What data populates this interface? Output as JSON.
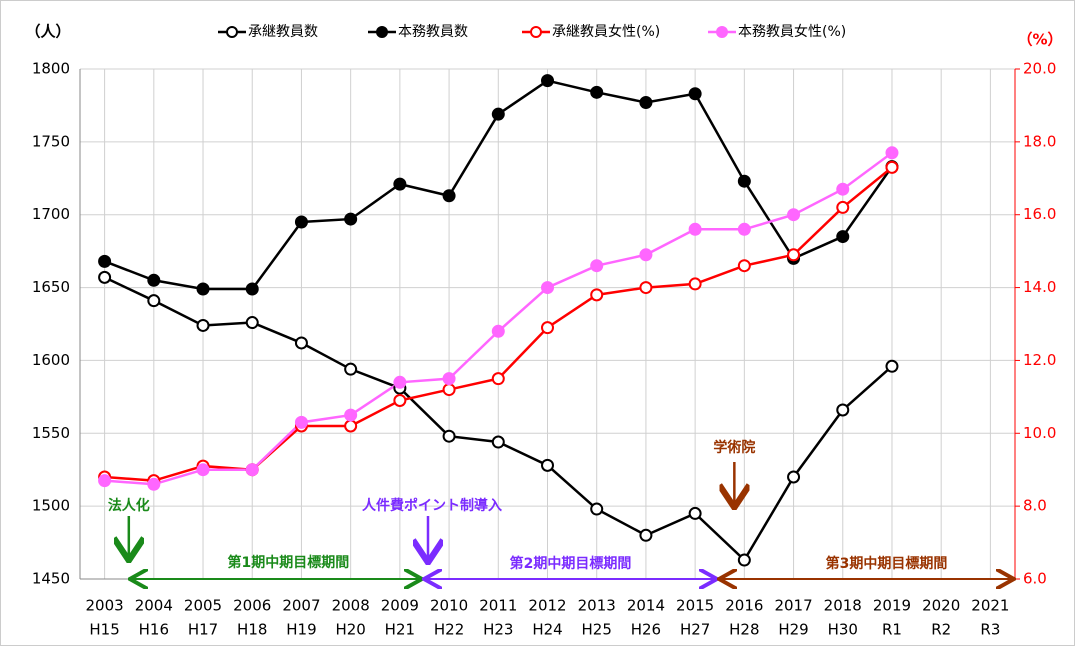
{
  "chart_data": {
    "type": "line",
    "y_label": "（人）",
    "y2_label": "（%）",
    "categories": [
      "2003",
      "2004",
      "2005",
      "2006",
      "2007",
      "2008",
      "2009",
      "2010",
      "2011",
      "2012",
      "2013",
      "2014",
      "2015",
      "2016",
      "2017",
      "2018",
      "2019",
      "2020",
      "2021"
    ],
    "category_sublabels": [
      "H15",
      "H16",
      "H17",
      "H18",
      "H19",
      "H20",
      "H21",
      "H22",
      "H23",
      "H24",
      "H25",
      "H26",
      "H27",
      "H28",
      "H29",
      "H30",
      "R1",
      "R2",
      "R3"
    ],
    "ylim": [
      1450,
      1800
    ],
    "yticks": [
      1450,
      1500,
      1550,
      1600,
      1650,
      1700,
      1750,
      1800
    ],
    "y2lim": [
      6,
      20
    ],
    "y2ticks": [
      {
        "value": 6,
        "label": "6.0"
      },
      {
        "value": 8,
        "label": "8.0"
      },
      {
        "value": 10,
        "label": "10.0"
      },
      {
        "value": 12,
        "label": "12.0"
      },
      {
        "value": 14,
        "label": "14.0"
      },
      {
        "value": 16,
        "label": "16.0"
      },
      {
        "value": 18,
        "label": "18.0"
      },
      {
        "value": 20,
        "label": "20.0"
      }
    ],
    "grid": true,
    "legend": "top",
    "series": [
      {
        "name": "承継教員数",
        "color": "#000000",
        "marker": "open",
        "values": [
          1657,
          1641,
          1624,
          1626,
          1612,
          1594,
          1581,
          1548,
          1544,
          1528,
          1498,
          1480,
          1495,
          1463,
          1520,
          1566,
          1596,
          null,
          null
        ]
      },
      {
        "name": "本務教員数",
        "color": "#000000",
        "marker": "filled",
        "values": [
          1668,
          1655,
          1649,
          1649,
          1695,
          1697,
          1721,
          1713,
          1769,
          1792,
          1784,
          1777,
          1783,
          1723,
          1670,
          1685,
          1733,
          null,
          null
        ]
      },
      {
        "name": "承継教員女性(%)",
        "color": "#ff0000",
        "marker": "open",
        "axis": "y2",
        "values": [
          8.8,
          8.7,
          9.1,
          9.0,
          10.2,
          10.2,
          10.9,
          11.2,
          11.5,
          12.9,
          13.8,
          14.0,
          14.1,
          14.6,
          14.9,
          16.2,
          17.3,
          null,
          null
        ]
      },
      {
        "name": "本務教員女性(%)",
        "color": "#ff66ff",
        "marker": "filled",
        "axis": "y2",
        "values": [
          8.7,
          8.6,
          9.0,
          9.0,
          10.3,
          10.5,
          11.4,
          11.5,
          12.8,
          14.0,
          14.6,
          14.9,
          15.6,
          15.6,
          16.0,
          16.7,
          17.7,
          null,
          null
        ]
      }
    ],
    "annotations": [
      {
        "text": "法人化",
        "color": "#1a8a1a"
      },
      {
        "text": "人件費ポイント制導入",
        "color": "#7b2cff"
      },
      {
        "text": "学術院",
        "color": "#993300"
      },
      {
        "text": "第1期中期目標期間",
        "color": "#1a8a1a"
      },
      {
        "text": "第2期中期目標期間",
        "color": "#7b2cff"
      },
      {
        "text": "第3期中期目標期間",
        "color": "#993300"
      }
    ]
  }
}
